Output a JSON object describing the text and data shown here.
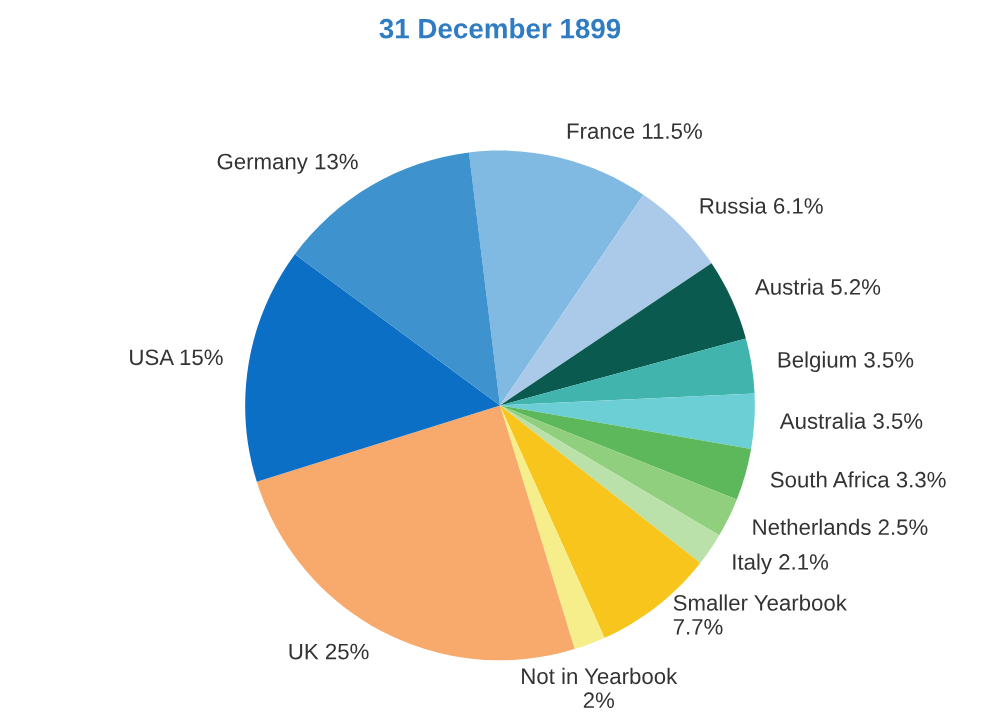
{
  "chart_data": {
    "type": "pie",
    "title": "31 December 1899",
    "categories": [
      "France",
      "Russia",
      "Austria",
      "Belgium",
      "Australia",
      "South Africa",
      "Netherlands",
      "Italy",
      "Smaller Yearbook",
      "Not in Yearbook",
      "UK",
      "USA",
      "Germany"
    ],
    "values": [
      11.5,
      6.1,
      5.2,
      3.5,
      3.5,
      3.3,
      2.5,
      2.1,
      7.7,
      2,
      25,
      15,
      13
    ],
    "value_labels": [
      "11.5%",
      "6.1%",
      "5.2%",
      "3.5%",
      "3.5%",
      "3.3%",
      "2.5%",
      "2.1%",
      "7.7%",
      "2%",
      "25%",
      "15%",
      "13%"
    ],
    "colors": [
      "#80b9e2",
      "#abc9e9",
      "#0b5a4f",
      "#40b4ad",
      "#6dcfd6",
      "#5db85b",
      "#8fcf7d",
      "#b9e1a9",
      "#f7c51c",
      "#f6ee8a",
      "#f8a96c",
      "#0b6fc6",
      "#3e93cf"
    ],
    "legend": false
  }
}
